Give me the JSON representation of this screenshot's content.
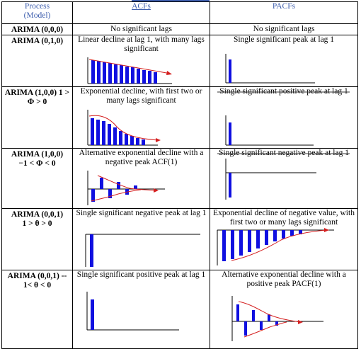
{
  "header": {
    "process_line1": "Process",
    "process_line2": "(Model)",
    "acf": "ACFs",
    "pacf": "PACFs"
  },
  "rows": [
    {
      "process": "ARIMA (0,0,0)",
      "acf_text": "No significant lags",
      "pacf_text": "No significant lags"
    },
    {
      "process": "ARIMA (0,1,0)",
      "acf_text": "Linear decline at lag 1, with many lags significant",
      "pacf_text": "Single significant peak at lag 1"
    },
    {
      "process_line1": "ARIMA (1,0,0) 1 >",
      "process_line2": "Φ > 0",
      "acf_text": "Exponential decline, with first two or many lags significant",
      "pacf_text": "Single significant positive peak at lag 1"
    },
    {
      "process_line1": "ARIMA (1,0,0)",
      "process_line2": "−1 < Φ < 0",
      "acf_text": "Alternative exponential decline with a negative peak ACF(1)",
      "pacf_text": "Single significant negative peak at lag 1"
    },
    {
      "process_line1": "ARIMA (0,0,1)",
      "process_line2": "1 > θ > 0",
      "acf_text": "Single significant negative peak at lag 1",
      "pacf_text": "Exponential decline of negative value, with first two or many lags significant"
    },
    {
      "process_line1": "ARIMA (0,0,1) --",
      "process_line2": "1< θ < 0",
      "acf_text": "Single significant positive peak at lag 1",
      "pacf_text": "Alternative exponential decline with a positive peak PACF(1)"
    }
  ],
  "colors": {
    "bar": "#1010e0",
    "curve": "#d42020",
    "header_text": "#3f5fae"
  }
}
